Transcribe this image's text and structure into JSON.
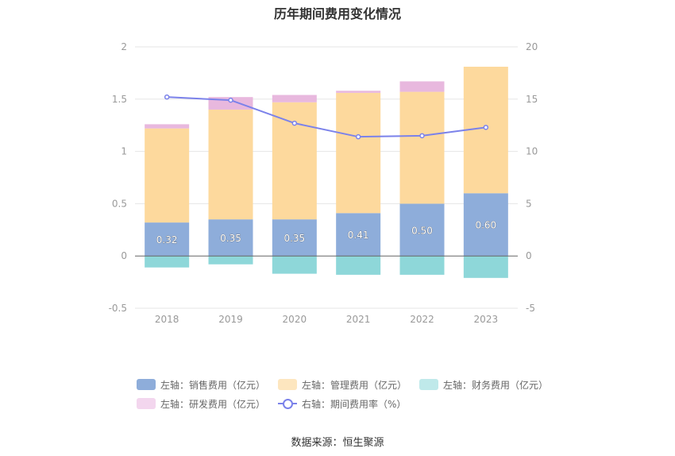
{
  "chart_data": {
    "type": "bar",
    "title": "历年期间费用变化情况",
    "categories": [
      "2018",
      "2019",
      "2020",
      "2021",
      "2022",
      "2023"
    ],
    "y_left": {
      "ticks": [
        "-0.5",
        "0",
        "0.5",
        "1",
        "1.5",
        "2"
      ],
      "ylim": [
        -0.5,
        2
      ]
    },
    "y_right": {
      "ticks": [
        "-5",
        "0",
        "5",
        "10",
        "15",
        "20"
      ],
      "ylim": [
        -5,
        20
      ]
    },
    "series": [
      {
        "name": "左轴：销售费用（亿元）",
        "axis": "left",
        "color": "#8eadda",
        "values": [
          0.32,
          0.35,
          0.35,
          0.41,
          0.5,
          0.6
        ],
        "labels": [
          "0.32",
          "0.35",
          "0.35",
          "0.41",
          "0.50",
          "0.60"
        ]
      },
      {
        "name": "左轴：管理费用（亿元）",
        "axis": "left",
        "color": "#fdd99d",
        "values": [
          0.9,
          1.05,
          1.12,
          1.15,
          1.07,
          1.21
        ]
      },
      {
        "name": "左轴：财务费用（亿元）",
        "axis": "left",
        "color": "#8ed7d9",
        "values": [
          -0.11,
          -0.08,
          -0.17,
          -0.18,
          -0.18,
          -0.21
        ]
      },
      {
        "name": "左轴：研发费用（亿元）",
        "axis": "left",
        "color": "#e8b8de",
        "values": [
          0.04,
          0.12,
          0.07,
          0.02,
          0.1,
          0.0
        ]
      },
      {
        "name": "右轴：期间费用率（%）",
        "axis": "right",
        "type": "line",
        "color": "#7b82ea",
        "values": [
          15.2,
          14.9,
          12.7,
          11.4,
          11.5,
          12.3
        ]
      }
    ],
    "grid": true,
    "legend_position": "bottom"
  },
  "legend": [
    [
      "左轴：销售费用（亿元）",
      "左轴：管理费用（亿元）",
      "左轴：财务费用（亿元）"
    ],
    [
      "左轴：研发费用（亿元）",
      "右轴：期间费用率（%）"
    ]
  ],
  "source": "数据来源：恒生聚源"
}
